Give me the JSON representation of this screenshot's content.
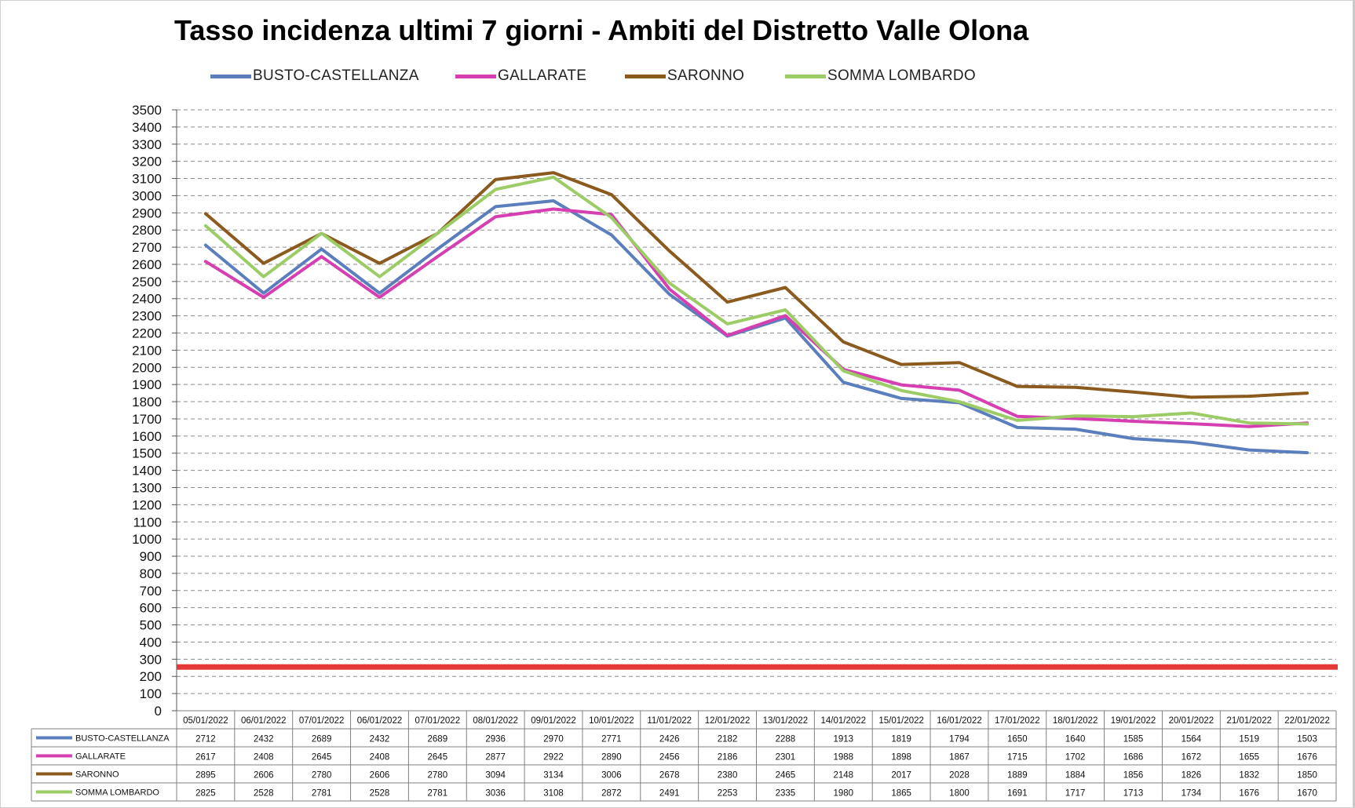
{
  "chart_data": {
    "type": "line",
    "title": "Tasso incidenza ultimi 7 giorni - Ambiti del Distretto Valle Olona",
    "xlabel": "",
    "ylabel": "",
    "ylim": [
      0,
      3500
    ],
    "ytick_step": 100,
    "grid": true,
    "grid_style": "dashed horizontal",
    "legend_position": "top",
    "data_table": true,
    "categories": [
      "05/01/2022",
      "06/01/2022",
      "07/01/2022",
      "06/01/2022",
      "07/01/2022",
      "08/01/2022",
      "09/01/2022",
      "10/01/2022",
      "11/01/2022",
      "12/01/2022",
      "13/01/2022",
      "14/01/2022",
      "15/01/2022",
      "16/01/2022",
      "17/01/2022",
      "18/01/2022",
      "19/01/2022",
      "20/01/2022",
      "21/01/2022",
      "22/01/2022"
    ],
    "series": [
      {
        "name": "BUSTO-CASTELLANZA",
        "color": "#5b7fbc",
        "values": [
          2712,
          2432,
          2689,
          2432,
          2689,
          2936,
          2970,
          2771,
          2426,
          2182,
          2288,
          1913,
          1819,
          1794,
          1650,
          1640,
          1585,
          1564,
          1519,
          1503
        ]
      },
      {
        "name": "GALLARATE",
        "color": "#d63fb1",
        "values": [
          2617,
          2408,
          2645,
          2408,
          2645,
          2877,
          2922,
          2890,
          2456,
          2186,
          2301,
          1988,
          1898,
          1867,
          1715,
          1702,
          1686,
          1672,
          1655,
          1676
        ]
      },
      {
        "name": "SARONNO",
        "color": "#8b5a1e",
        "values": [
          2895,
          2606,
          2780,
          2606,
          2780,
          3094,
          3134,
          3006,
          2678,
          2380,
          2465,
          2148,
          2017,
          2028,
          1889,
          1884,
          1856,
          1826,
          1832,
          1850
        ]
      },
      {
        "name": "SOMMA LOMBARDO",
        "color": "#9ccc65",
        "values": [
          2825,
          2528,
          2781,
          2528,
          2781,
          3036,
          3108,
          2872,
          2491,
          2253,
          2335,
          1980,
          1865,
          1800,
          1691,
          1717,
          1713,
          1734,
          1676,
          1670
        ]
      }
    ],
    "reference_line": {
      "value": 255,
      "color": "#e53935"
    }
  }
}
